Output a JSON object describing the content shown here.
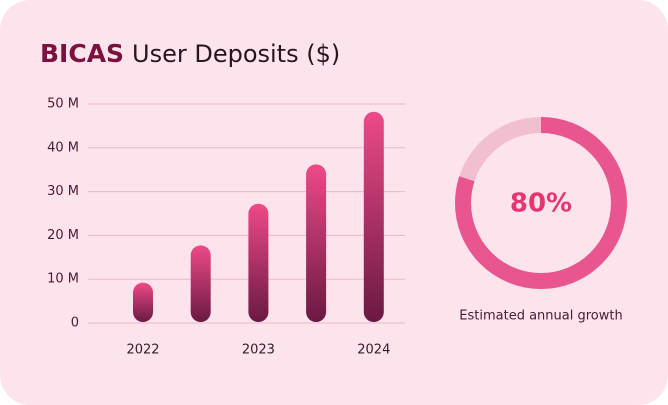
{
  "chart_data": {
    "type": "bar",
    "brand": "BICAS",
    "title": "User Deposits ($)",
    "categories": [
      "2022",
      null,
      "2023",
      null,
      "2024"
    ],
    "values": [
      9,
      17.5,
      27,
      36,
      48
    ],
    "gradient": [
      "#ee4a88",
      "#6a1942"
    ],
    "ylim": [
      0,
      50
    ],
    "yticks": [
      0,
      {
        "value": 10,
        "label": "10 M"
      },
      {
        "value": 20,
        "label": "20 M"
      },
      {
        "value": 30,
        "label": "30 M"
      },
      {
        "value": 40,
        "label": "40 M"
      },
      {
        "value": 50,
        "label": "50 M"
      }
    ],
    "grid": true
  },
  "growth": {
    "value": 80,
    "label": "80%",
    "caption": "Estimated annual growth",
    "color": "#e8558f"
  }
}
